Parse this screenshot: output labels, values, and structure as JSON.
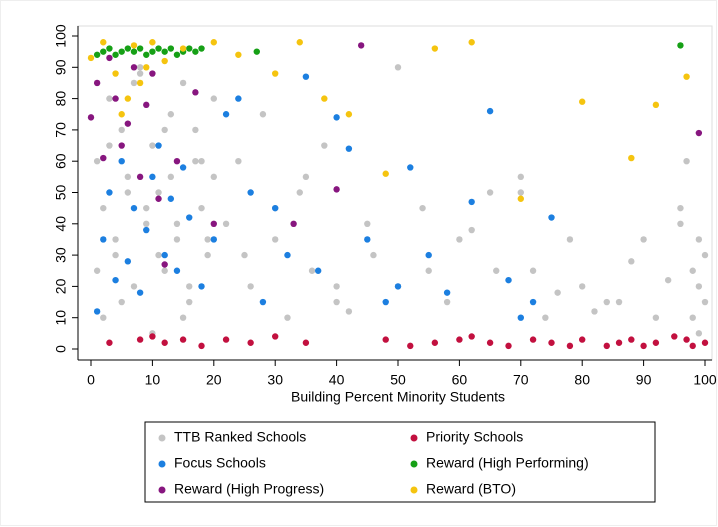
{
  "chart_data": {
    "type": "scatter",
    "x_label": "Building Percent Minority Students",
    "xlim": [
      0,
      100
    ],
    "xticks": [
      0,
      10,
      20,
      30,
      40,
      50,
      60,
      70,
      80,
      90,
      100
    ],
    "ylim": [
      0,
      100
    ],
    "yticks": [
      0,
      10,
      20,
      30,
      40,
      50,
      60,
      70,
      80,
      90,
      100
    ],
    "series": [
      {
        "name": "TTB Ranked Schools",
        "color": "#c4c4c4",
        "x": [
          1,
          2,
          3,
          4,
          5,
          6,
          7,
          8,
          9,
          10,
          11,
          12,
          13,
          14,
          15,
          16,
          17,
          18,
          19,
          20,
          2,
          4,
          6,
          8,
          10,
          12,
          14,
          16,
          18,
          20,
          1,
          3,
          5,
          7,
          9,
          11,
          13,
          15,
          17,
          19,
          22,
          24,
          26,
          28,
          30,
          32,
          34,
          36,
          38,
          40,
          25,
          30,
          35,
          40,
          45,
          50,
          55,
          60,
          65,
          70,
          42,
          46,
          50,
          54,
          58,
          62,
          66,
          70,
          74,
          78,
          80,
          84,
          88,
          92,
          96,
          98,
          99,
          100,
          97,
          99,
          99,
          100,
          98,
          96,
          94,
          90,
          86,
          82,
          76,
          72
        ],
        "values": [
          60,
          45,
          80,
          30,
          70,
          55,
          20,
          88,
          40,
          65,
          50,
          25,
          75,
          35,
          85,
          15,
          60,
          45,
          30,
          55,
          10,
          35,
          50,
          90,
          5,
          70,
          40,
          20,
          60,
          80,
          25,
          65,
          15,
          85,
          45,
          30,
          55,
          10,
          70,
          35,
          40,
          60,
          20,
          75,
          35,
          10,
          50,
          25,
          65,
          15,
          30,
          45,
          55,
          20,
          40,
          90,
          25,
          35,
          50,
          55,
          12,
          30,
          20,
          45,
          15,
          38,
          25,
          50,
          10,
          35,
          20,
          15,
          28,
          10,
          40,
          25,
          35,
          15,
          60,
          5,
          20,
          30,
          10,
          45,
          22,
          35,
          15,
          12,
          18,
          25
        ]
      },
      {
        "name": "Focus Schools",
        "color": "#1c7fe0",
        "x": [
          1,
          2,
          3,
          4,
          5,
          6,
          7,
          8,
          9,
          10,
          11,
          12,
          13,
          14,
          15,
          16,
          18,
          20,
          22,
          24,
          26,
          28,
          30,
          32,
          35,
          37,
          40,
          42,
          45,
          48,
          50,
          52,
          55,
          58,
          62,
          65,
          68,
          72,
          75,
          70
        ],
        "values": [
          12,
          35,
          50,
          22,
          60,
          28,
          45,
          18,
          38,
          55,
          65,
          30,
          48,
          25,
          58,
          42,
          20,
          35,
          75,
          80,
          50,
          15,
          45,
          30,
          87,
          25,
          74,
          64,
          35,
          15,
          20,
          58,
          30,
          18,
          47,
          76,
          22,
          15,
          42,
          10
        ]
      },
      {
        "name": "Reward (High Progress)",
        "color": "#87167f",
        "x": [
          0,
          1,
          2,
          3,
          4,
          5,
          6,
          7,
          8,
          9,
          10,
          11,
          12,
          14,
          17,
          20,
          33,
          44,
          40,
          99
        ],
        "values": [
          74,
          85,
          61,
          93,
          80,
          65,
          72,
          90,
          55,
          78,
          88,
          48,
          27,
          60,
          82,
          40,
          40,
          97,
          51,
          69
        ]
      },
      {
        "name": "Priority Schools",
        "color": "#c2103f",
        "x": [
          3,
          8,
          10,
          12,
          15,
          18,
          22,
          26,
          30,
          35,
          48,
          52,
          56,
          60,
          62,
          65,
          68,
          72,
          75,
          78,
          80,
          84,
          86,
          88,
          90,
          92,
          95,
          97,
          98,
          100
        ],
        "values": [
          2,
          3,
          4,
          2,
          3,
          1,
          3,
          2,
          4,
          2,
          3,
          1,
          2,
          3,
          4,
          2,
          1,
          3,
          2,
          1,
          3,
          1,
          2,
          3,
          1,
          2,
          4,
          3,
          1,
          2
        ]
      },
      {
        "name": "Reward (High Performing)",
        "color": "#16a016",
        "x": [
          1,
          2,
          3,
          4,
          5,
          6,
          7,
          8,
          9,
          10,
          11,
          12,
          13,
          14,
          15,
          16,
          17,
          18,
          27,
          96
        ],
        "values": [
          94,
          95,
          96,
          94,
          95,
          96,
          95,
          96,
          94,
          95,
          96,
          95,
          96,
          94,
          95,
          96,
          95,
          96,
          95,
          97
        ]
      },
      {
        "name": "Reward (BTO)",
        "color": "#f5c40f",
        "x": [
          0,
          2,
          4,
          5,
          6,
          7,
          8,
          9,
          10,
          12,
          15,
          20,
          24,
          30,
          34,
          38,
          42,
          48,
          56,
          62,
          70,
          80,
          88,
          92,
          97
        ],
        "values": [
          93,
          98,
          88,
          75,
          80,
          97,
          85,
          90,
          98,
          92,
          96,
          98,
          94,
          88,
          98,
          80,
          75,
          56,
          96,
          98,
          48,
          79,
          61,
          78,
          87
        ]
      }
    ]
  }
}
